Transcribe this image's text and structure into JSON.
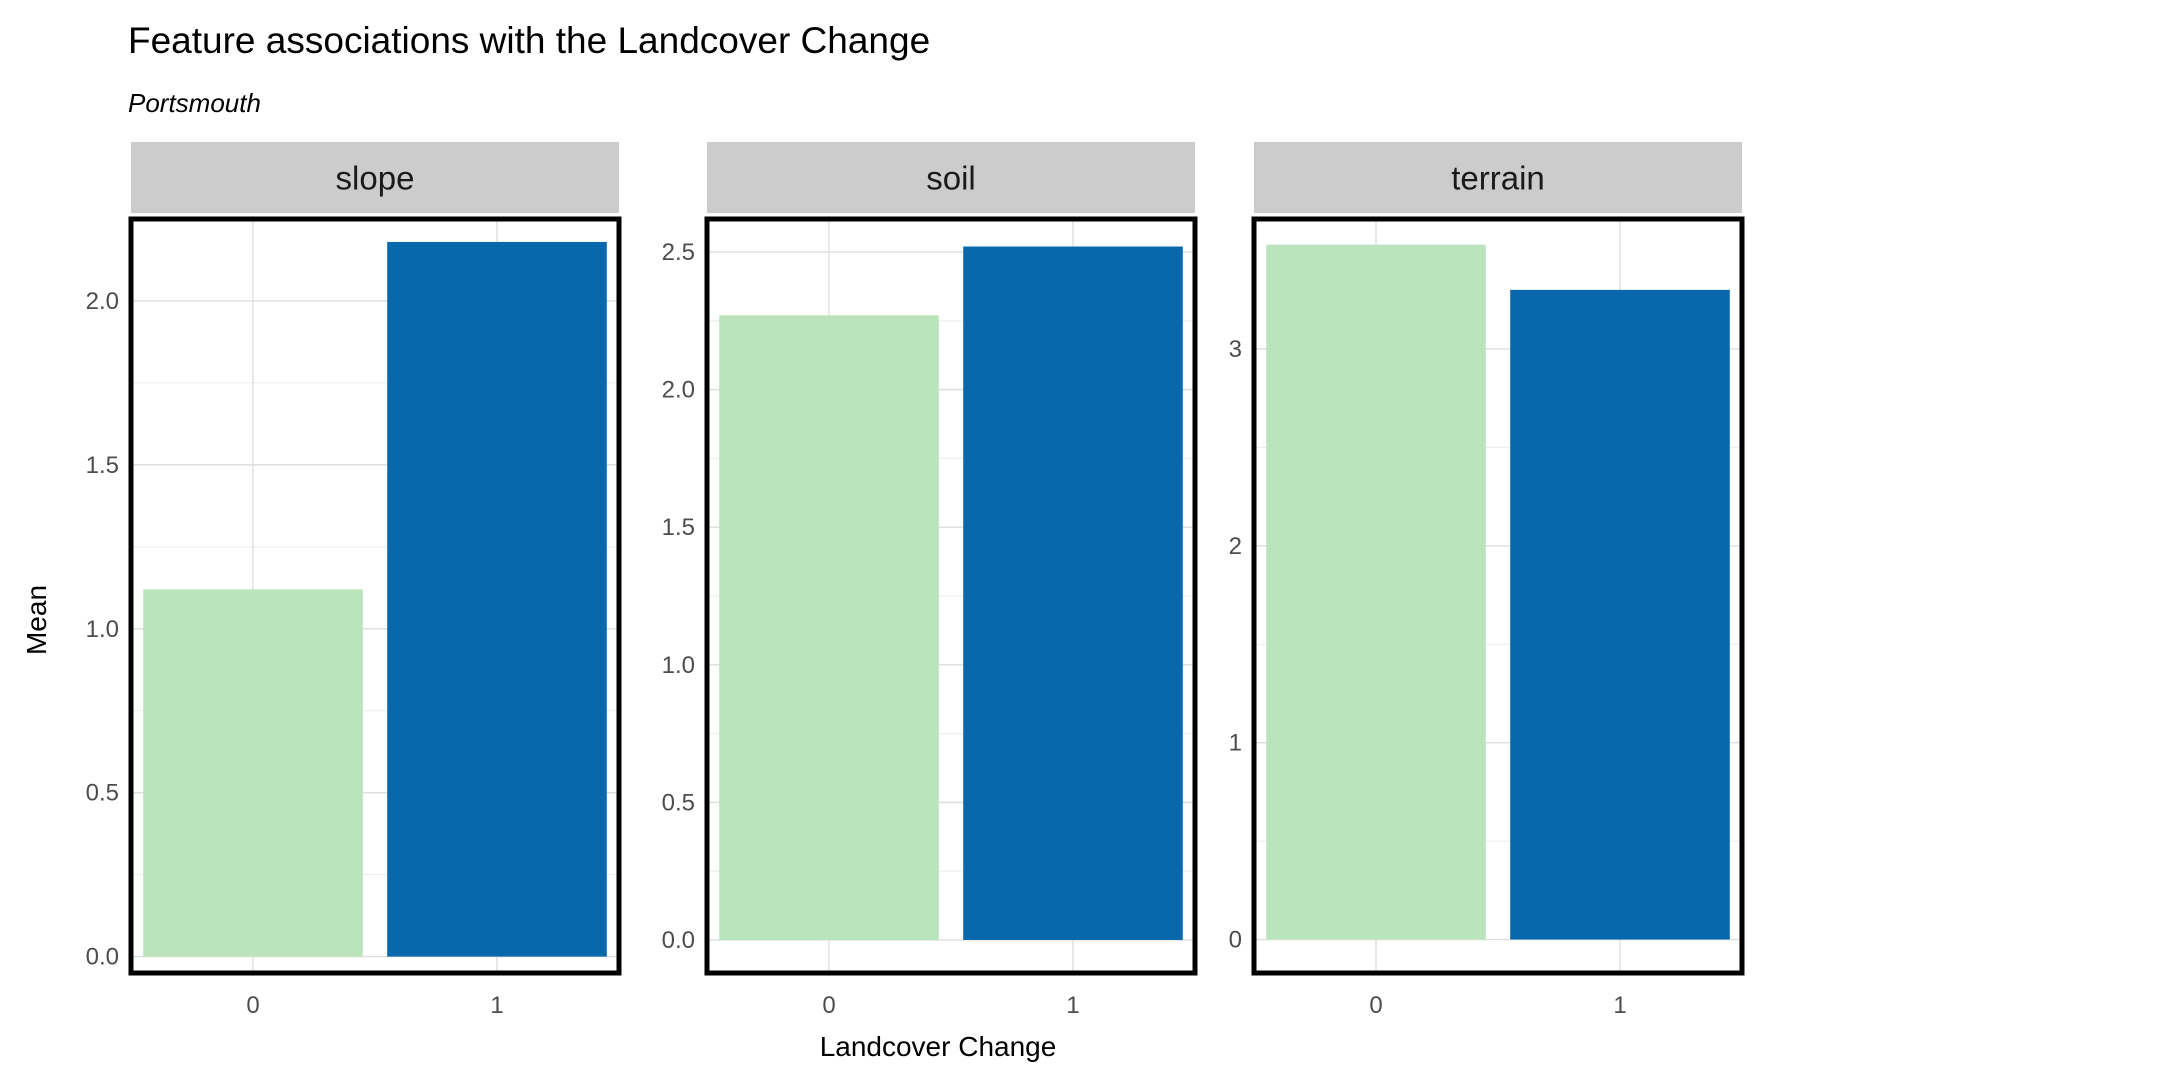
{
  "chart_data": {
    "type": "bar",
    "title": "Feature associations with the Landcover Change",
    "subtitle": "Portsmouth",
    "xlabel": "Landcover Change",
    "ylabel": "Mean",
    "categories": [
      "0",
      "1"
    ],
    "colors": [
      "#bae4bc",
      "#0868ac"
    ],
    "panel_background": "#ffffff",
    "strip_background": "#cccccc",
    "grid": true,
    "legend": "none",
    "panels": [
      {
        "name": "slope",
        "values": [
          1.12,
          2.18
        ],
        "ylim": [
          -0.05,
          2.25
        ],
        "yticks": [
          0.0,
          0.5,
          1.0,
          1.5,
          2.0
        ],
        "ytick_labels": [
          "0.0",
          "0.5",
          "1.0",
          "1.5",
          "2.0"
        ]
      },
      {
        "name": "soil",
        "values": [
          2.27,
          2.52
        ],
        "ylim": [
          -0.12,
          2.62
        ],
        "yticks": [
          0.0,
          0.5,
          1.0,
          1.5,
          2.0,
          2.5
        ],
        "ytick_labels": [
          "0.0",
          "0.5",
          "1.0",
          "1.5",
          "2.0",
          "2.5"
        ]
      },
      {
        "name": "terrain",
        "values": [
          3.53,
          3.3
        ],
        "ylim": [
          -0.17,
          3.66
        ],
        "yticks": [
          0,
          1,
          2,
          3
        ],
        "ytick_labels": [
          "0",
          "1",
          "2",
          "3"
        ]
      }
    ]
  }
}
